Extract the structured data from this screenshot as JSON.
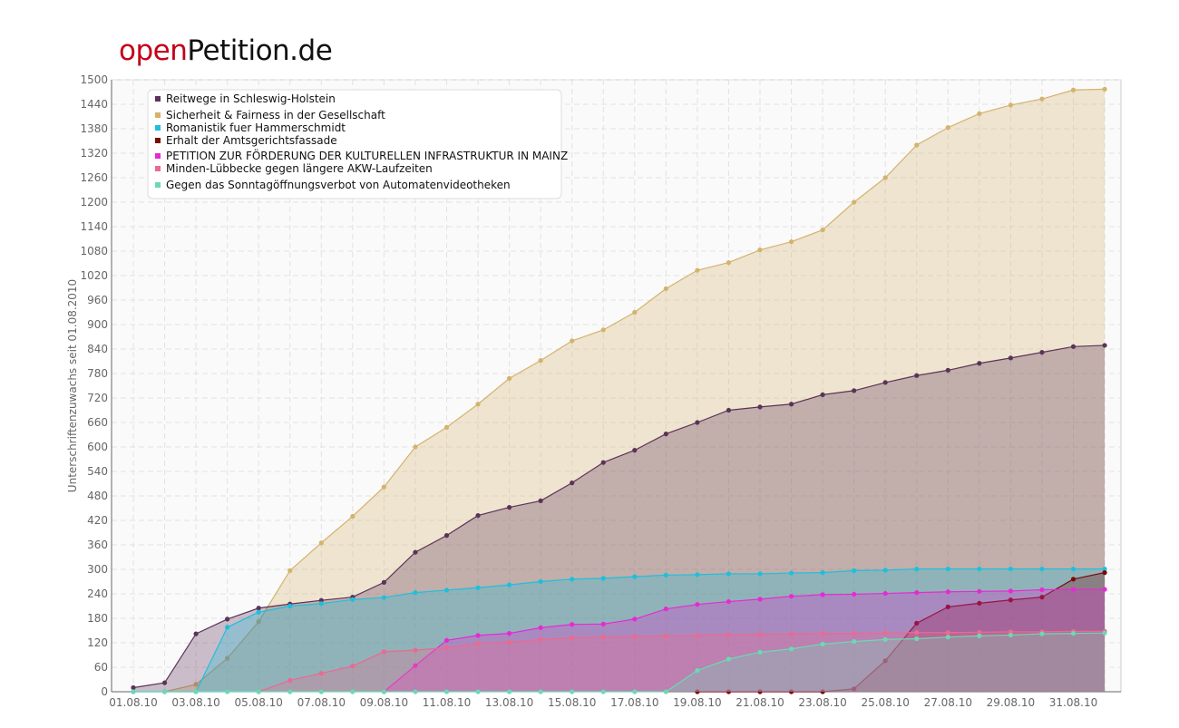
{
  "logo": {
    "part1": "open",
    "part2": "Petition.de"
  },
  "chart_data": {
    "type": "area",
    "ylabel": "Unterschriftenzuwachs seit 01.08.2010",
    "xlabel": "",
    "ylim": [
      0,
      1500
    ],
    "ytick_step": 60,
    "grid": true,
    "legend_position": "top-left",
    "x": [
      "01.08.10",
      "02.08.10",
      "03.08.10",
      "04.08.10",
      "05.08.10",
      "06.08.10",
      "07.08.10",
      "08.08.10",
      "09.08.10",
      "10.08.10",
      "11.08.10",
      "12.08.10",
      "13.08.10",
      "14.08.10",
      "15.08.10",
      "16.08.10",
      "17.08.10",
      "18.08.10",
      "19.08.10",
      "20.08.10",
      "21.08.10",
      "22.08.10",
      "23.08.10",
      "24.08.10",
      "25.08.10",
      "26.08.10",
      "27.08.10",
      "28.08.10",
      "29.08.10",
      "30.08.10",
      "31.08.10",
      "01.09.10"
    ],
    "xtick_labels": [
      "01.08.10",
      "03.08.10",
      "05.08.10",
      "07.08.10",
      "09.08.10",
      "11.08.10",
      "13.08.10",
      "15.08.10",
      "17.08.10",
      "19.08.10",
      "21.08.10",
      "23.08.10",
      "25.08.10",
      "27.08.10",
      "29.08.10",
      "31.08.10"
    ],
    "series": [
      {
        "name": "Sicherheit & Fairness in der Gesellschaft",
        "color": "#d4b36e",
        "values": [
          null,
          0,
          18,
          82,
          172,
          297,
          365,
          430,
          502,
          600,
          648,
          705,
          768,
          812,
          860,
          887,
          930,
          988,
          1033,
          1052,
          1083,
          1103,
          1132,
          1200,
          1260,
          1340,
          1383,
          1417,
          1438,
          1453,
          1475,
          1477
        ]
      },
      {
        "name": "Reitwege in Schleswig-Holstein",
        "color": "#5c3358",
        "values": [
          10,
          22,
          142,
          178,
          205,
          215,
          224,
          232,
          268,
          342,
          383,
          432,
          452,
          468,
          512,
          562,
          592,
          632,
          660,
          690,
          698,
          705,
          728,
          738,
          758,
          775,
          788,
          805,
          818,
          832,
          846,
          849
        ]
      },
      {
        "name": "Romanistik fuer Hammerschmidt",
        "color": "#1ebfdc",
        "values": [
          0,
          0,
          0,
          158,
          195,
          210,
          216,
          226,
          231,
          243,
          249,
          255,
          262,
          270,
          276,
          278,
          282,
          286,
          287,
          289,
          289,
          291,
          292,
          297,
          298,
          301,
          301,
          301,
          301,
          301,
          301,
          301
        ]
      },
      {
        "name": "Erhalt der Amtsgerichtsfassade",
        "color": "#7a0a0a",
        "values": [
          null,
          null,
          null,
          null,
          null,
          null,
          null,
          null,
          null,
          null,
          null,
          null,
          null,
          null,
          null,
          null,
          null,
          null,
          0,
          0,
          0,
          0,
          0,
          7,
          76,
          168,
          208,
          217,
          225,
          232,
          276,
          292
        ]
      },
      {
        "name": "PETITION ZUR FÖRDERUNG DER KULTURELLEN INFRASTRUKTUR IN MAINZ",
        "color": "#e62ad2",
        "values": [
          null,
          null,
          null,
          null,
          null,
          null,
          null,
          null,
          0,
          64,
          126,
          138,
          143,
          157,
          165,
          166,
          178,
          203,
          214,
          221,
          227,
          234,
          238,
          239,
          241,
          243,
          245,
          246,
          247,
          250,
          251,
          251
        ]
      },
      {
        "name": "Minden-Lübbecke gegen längere AKW-Laufzeiten",
        "color": "#ea6a90",
        "values": [
          null,
          null,
          null,
          null,
          0,
          28,
          45,
          63,
          98,
          102,
          108,
          118,
          122,
          128,
          132,
          134,
          136,
          137,
          138,
          140,
          141,
          142,
          143,
          143,
          144,
          145,
          145,
          146,
          147,
          147,
          148,
          148
        ]
      },
      {
        "name": "Gegen das Sonntagöffnungsverbot von Automatenvideotheken",
        "color": "#6cd8b4",
        "values": [
          0,
          0,
          0,
          0,
          0,
          0,
          0,
          0,
          0,
          0,
          0,
          0,
          0,
          0,
          0,
          0,
          0,
          0,
          52,
          80,
          97,
          105,
          117,
          123,
          128,
          130,
          134,
          137,
          139,
          142,
          143,
          144
        ]
      }
    ],
    "legend_order": [
      1,
      0,
      2,
      3,
      4,
      5,
      6
    ]
  }
}
